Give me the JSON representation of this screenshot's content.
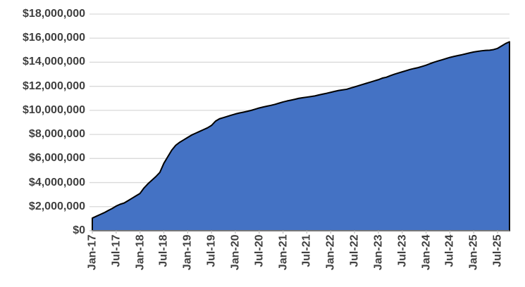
{
  "chart_data": {
    "type": "area",
    "title": "",
    "legend": "none",
    "grid": "horizontal",
    "ylim": [
      0,
      18000000
    ],
    "y_tick_step": 2000000,
    "x_tick_every": 6,
    "y_tick_labels_top_to_bottom": [
      "$18,000,000",
      "$16,000,000",
      "$14,000,000",
      "$12,000,000",
      "$10,000,000",
      "$8,000,000",
      "$6,000,000",
      "$4,000,000",
      "$2,000,000",
      "$0"
    ],
    "x_tick_labels": [
      "Jan-17",
      "Jul-17",
      "Jan-18",
      "Jul-18",
      "Jan-19",
      "Jul-19",
      "Jan-20",
      "Jul-20",
      "Jan-21",
      "Jul-21",
      "Jan-22",
      "Jul-22",
      "Jan-23",
      "Jul-23",
      "Jan-24",
      "Jul-24",
      "Jan-25",
      "Jul-25"
    ],
    "categories": [
      "Jan-17",
      "Feb-17",
      "Mar-17",
      "Apr-17",
      "May-17",
      "Jun-17",
      "Jul-17",
      "Aug-17",
      "Sep-17",
      "Oct-17",
      "Nov-17",
      "Dec-17",
      "Jan-18",
      "Feb-18",
      "Mar-18",
      "Apr-18",
      "May-18",
      "Jun-18",
      "Jul-18",
      "Aug-18",
      "Sep-18",
      "Oct-18",
      "Nov-18",
      "Dec-18",
      "Jan-19",
      "Feb-19",
      "Mar-19",
      "Apr-19",
      "May-19",
      "Jun-19",
      "Jul-19",
      "Aug-19",
      "Sep-19",
      "Oct-19",
      "Nov-19",
      "Dec-19",
      "Jan-20",
      "Feb-20",
      "Mar-20",
      "Apr-20",
      "May-20",
      "Jun-20",
      "Jul-20",
      "Aug-20",
      "Sep-20",
      "Oct-20",
      "Nov-20",
      "Dec-20",
      "Jan-21",
      "Feb-21",
      "Mar-21",
      "Apr-21",
      "May-21",
      "Jun-21",
      "Jul-21",
      "Aug-21",
      "Sep-21",
      "Oct-21",
      "Nov-21",
      "Dec-21",
      "Jan-22",
      "Feb-22",
      "Mar-22",
      "Apr-22",
      "May-22",
      "Jun-22",
      "Jul-22",
      "Aug-22",
      "Sep-22",
      "Oct-22",
      "Nov-22",
      "Dec-22",
      "Jan-23",
      "Feb-23",
      "Mar-23",
      "Apr-23",
      "May-23",
      "Jun-23",
      "Jul-23",
      "Aug-23",
      "Sep-23",
      "Oct-23",
      "Nov-23",
      "Dec-23",
      "Jan-24",
      "Feb-24",
      "Mar-24",
      "Apr-24",
      "May-24",
      "Jun-24",
      "Jul-24",
      "Aug-24",
      "Sep-24",
      "Oct-24",
      "Nov-24",
      "Dec-24",
      "Jan-25",
      "Feb-25",
      "Mar-25",
      "Apr-25",
      "May-25",
      "Jun-25",
      "Jul-25",
      "Aug-25",
      "Sep-25",
      "Oct-25"
    ],
    "values": [
      1050000,
      1200000,
      1350000,
      1500000,
      1680000,
      1850000,
      2050000,
      2200000,
      2300000,
      2500000,
      2700000,
      2900000,
      3100000,
      3550000,
      3900000,
      4200000,
      4500000,
      4850000,
      5600000,
      6150000,
      6700000,
      7100000,
      7350000,
      7550000,
      7750000,
      7950000,
      8100000,
      8250000,
      8400000,
      8550000,
      8750000,
      9100000,
      9300000,
      9400000,
      9500000,
      9600000,
      9700000,
      9780000,
      9850000,
      9920000,
      10000000,
      10100000,
      10200000,
      10280000,
      10350000,
      10420000,
      10500000,
      10600000,
      10700000,
      10780000,
      10850000,
      10920000,
      11000000,
      11050000,
      11100000,
      11150000,
      11200000,
      11280000,
      11350000,
      11420000,
      11500000,
      11580000,
      11650000,
      11700000,
      11750000,
      11850000,
      11950000,
      12050000,
      12150000,
      12250000,
      12350000,
      12450000,
      12550000,
      12680000,
      12750000,
      12880000,
      13000000,
      13100000,
      13200000,
      13300000,
      13400000,
      13480000,
      13550000,
      13650000,
      13750000,
      13880000,
      14000000,
      14100000,
      14200000,
      14300000,
      14400000,
      14480000,
      14550000,
      14620000,
      14700000,
      14780000,
      14850000,
      14900000,
      14950000,
      14980000,
      15000000,
      15050000,
      15150000,
      15350000,
      15550000,
      15700000
    ],
    "colors": {
      "fill": "#4472C4",
      "line": "#000000",
      "gridline": "#D9D9D9",
      "axis": "#BFBFBF",
      "label": "#404040",
      "background": "#FFFFFF"
    }
  }
}
